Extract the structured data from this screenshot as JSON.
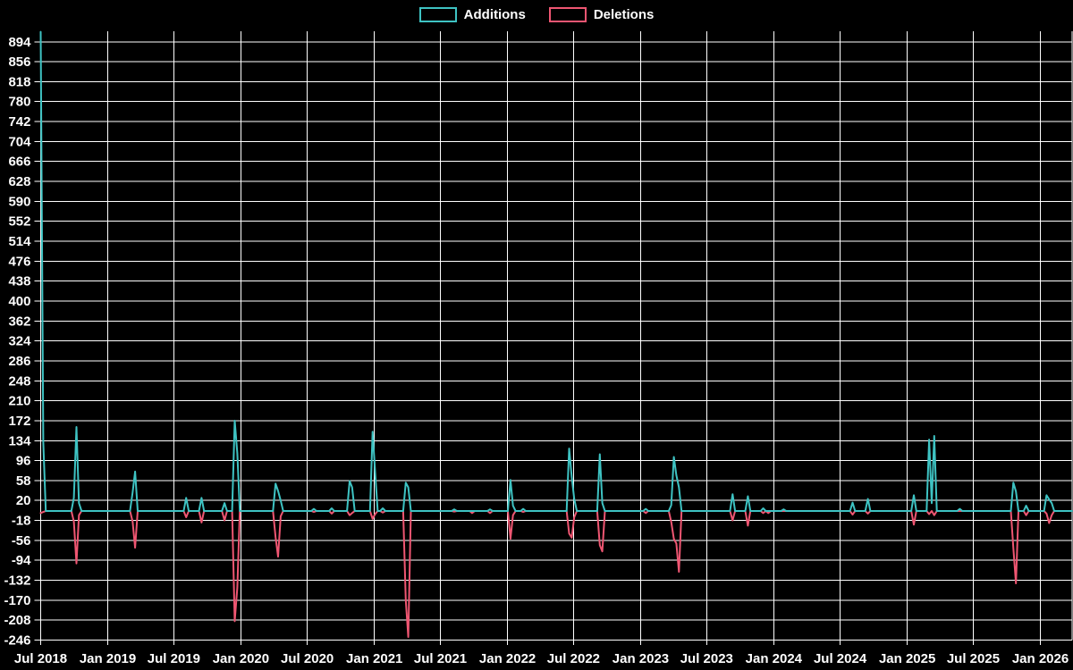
{
  "legend": {
    "items": [
      {
        "label": "Additions",
        "color": "#3ec3c3"
      },
      {
        "label": "Deletions",
        "color": "#ef5672"
      }
    ]
  },
  "chart_data": {
    "type": "line",
    "title": "",
    "xlabel": "",
    "ylabel": "",
    "background_color": "#000000",
    "grid": true,
    "grid_color": "#ffffff",
    "text_color": "#ffffff",
    "legend_position": "top-center",
    "x_axis": {
      "start_date": "2018-07-01",
      "end_date": "2026-03-29",
      "ticks": [
        {
          "label": "Jul 2018",
          "date": "2018-07-01"
        },
        {
          "label": "Jan 2019",
          "date": "2019-01-01"
        },
        {
          "label": "Jul 2019",
          "date": "2019-07-01"
        },
        {
          "label": "Jan 2020",
          "date": "2020-01-01"
        },
        {
          "label": "Jul 2020",
          "date": "2020-07-01"
        },
        {
          "label": "Jan 2021",
          "date": "2021-01-01"
        },
        {
          "label": "Jul 2021",
          "date": "2021-07-01"
        },
        {
          "label": "Jan 2022",
          "date": "2022-01-01"
        },
        {
          "label": "Jul 2022",
          "date": "2022-07-01"
        },
        {
          "label": "Jan 2023",
          "date": "2023-01-01"
        },
        {
          "label": "Jul 2023",
          "date": "2023-07-01"
        },
        {
          "label": "Jan 2024",
          "date": "2024-01-01"
        },
        {
          "label": "Jul 2024",
          "date": "2024-07-01"
        },
        {
          "label": "Jan 2025",
          "date": "2025-01-01"
        },
        {
          "label": "Jul 2025",
          "date": "2025-07-01"
        },
        {
          "label": "Jan 2026",
          "date": "2026-01-01"
        }
      ]
    },
    "y_axis": {
      "min": -246,
      "max": 914,
      "ticks": [
        894,
        856,
        818,
        780,
        742,
        704,
        666,
        628,
        590,
        552,
        514,
        476,
        438,
        400,
        362,
        324,
        286,
        248,
        210,
        172,
        134,
        96,
        58,
        20,
        -18,
        -56,
        -94,
        -132,
        -170,
        -208,
        -246
      ]
    },
    "baseline_value": 0,
    "series": [
      {
        "name": "Additions",
        "color": "#3ec3c3",
        "points": [
          [
            "2018-07-01",
            913
          ],
          [
            "2018-07-08",
            131
          ],
          [
            "2018-09-30",
            25
          ],
          [
            "2018-10-07",
            160
          ],
          [
            "2018-10-14",
            15
          ],
          [
            "2019-03-10",
            35
          ],
          [
            "2019-03-17",
            75
          ],
          [
            "2019-08-04",
            25
          ],
          [
            "2019-09-15",
            25
          ],
          [
            "2019-11-17",
            15
          ],
          [
            "2019-12-15",
            172
          ],
          [
            "2019-12-22",
            110
          ],
          [
            "2020-04-05",
            52
          ],
          [
            "2020-04-12",
            38
          ],
          [
            "2020-04-19",
            20
          ],
          [
            "2020-07-19",
            4
          ],
          [
            "2020-09-06",
            5
          ],
          [
            "2020-10-25",
            57
          ],
          [
            "2020-11-01",
            45
          ],
          [
            "2020-12-27",
            151
          ],
          [
            "2021-01-03",
            75
          ],
          [
            "2021-01-24",
            5
          ],
          [
            "2021-03-28",
            54
          ],
          [
            "2021-04-04",
            45
          ],
          [
            "2021-08-08",
            3
          ],
          [
            "2021-11-14",
            3
          ],
          [
            "2022-01-09",
            59
          ],
          [
            "2022-01-16",
            10
          ],
          [
            "2022-02-13",
            4
          ],
          [
            "2022-06-19",
            119
          ],
          [
            "2022-06-26",
            65
          ],
          [
            "2022-07-03",
            23
          ],
          [
            "2022-09-11",
            108
          ],
          [
            "2022-09-18",
            15
          ],
          [
            "2023-01-15",
            4
          ],
          [
            "2023-03-26",
            11
          ],
          [
            "2023-04-02",
            103
          ],
          [
            "2023-04-09",
            68
          ],
          [
            "2023-04-16",
            45
          ],
          [
            "2023-09-10",
            32
          ],
          [
            "2023-10-22",
            28
          ],
          [
            "2023-12-03",
            5
          ],
          [
            "2024-01-28",
            3
          ],
          [
            "2024-08-04",
            16
          ],
          [
            "2024-09-15",
            23
          ],
          [
            "2025-01-19",
            30
          ],
          [
            "2025-03-02",
            136
          ],
          [
            "2025-03-09",
            15
          ],
          [
            "2025-03-16",
            143
          ],
          [
            "2025-05-25",
            4
          ],
          [
            "2025-10-19",
            54
          ],
          [
            "2025-10-26",
            37
          ],
          [
            "2025-11-23",
            10
          ],
          [
            "2026-01-18",
            30
          ],
          [
            "2026-01-25",
            22
          ],
          [
            "2026-02-01",
            15
          ]
        ]
      },
      {
        "name": "Deletions",
        "color": "#ef5672",
        "points": [
          [
            "2018-07-01",
            -4
          ],
          [
            "2018-07-08",
            -2
          ],
          [
            "2018-09-30",
            -20
          ],
          [
            "2018-10-07",
            -100
          ],
          [
            "2018-10-14",
            -8
          ],
          [
            "2019-03-10",
            -20
          ],
          [
            "2019-03-17",
            -70
          ],
          [
            "2019-08-04",
            -12
          ],
          [
            "2019-09-15",
            -22
          ],
          [
            "2019-11-17",
            -18
          ],
          [
            "2019-12-15",
            -210
          ],
          [
            "2019-12-22",
            -146
          ],
          [
            "2020-04-05",
            -50
          ],
          [
            "2020-04-12",
            -87
          ],
          [
            "2020-04-19",
            -10
          ],
          [
            "2020-07-19",
            -2
          ],
          [
            "2020-09-06",
            -5
          ],
          [
            "2020-10-25",
            -8
          ],
          [
            "2020-11-01",
            -4
          ],
          [
            "2020-12-27",
            -15
          ],
          [
            "2021-01-03",
            -6
          ],
          [
            "2021-01-24",
            -3
          ],
          [
            "2021-03-28",
            -170
          ],
          [
            "2021-04-04",
            -240
          ],
          [
            "2021-08-08",
            -1
          ],
          [
            "2021-09-26",
            -4
          ],
          [
            "2021-11-14",
            -4
          ],
          [
            "2022-01-09",
            -53
          ],
          [
            "2022-01-16",
            -8
          ],
          [
            "2022-02-13",
            -2
          ],
          [
            "2022-06-19",
            -43
          ],
          [
            "2022-06-26",
            -51
          ],
          [
            "2022-07-03",
            -12
          ],
          [
            "2022-09-11",
            -65
          ],
          [
            "2022-09-18",
            -77
          ],
          [
            "2023-01-15",
            -4
          ],
          [
            "2023-03-26",
            -21
          ],
          [
            "2023-04-02",
            -53
          ],
          [
            "2023-04-09",
            -62
          ],
          [
            "2023-04-16",
            -116
          ],
          [
            "2023-09-10",
            -18
          ],
          [
            "2023-10-22",
            -28
          ],
          [
            "2023-12-03",
            -4
          ],
          [
            "2023-12-17",
            -4
          ],
          [
            "2024-08-04",
            -7
          ],
          [
            "2024-09-15",
            -5
          ],
          [
            "2025-01-19",
            -26
          ],
          [
            "2025-03-02",
            -6
          ],
          [
            "2025-03-16",
            -8
          ],
          [
            "2025-10-19",
            -71
          ],
          [
            "2025-10-26",
            -138
          ],
          [
            "2025-11-23",
            -8
          ],
          [
            "2026-01-18",
            -5
          ],
          [
            "2026-01-25",
            -23
          ],
          [
            "2026-02-01",
            -8
          ]
        ]
      }
    ]
  }
}
